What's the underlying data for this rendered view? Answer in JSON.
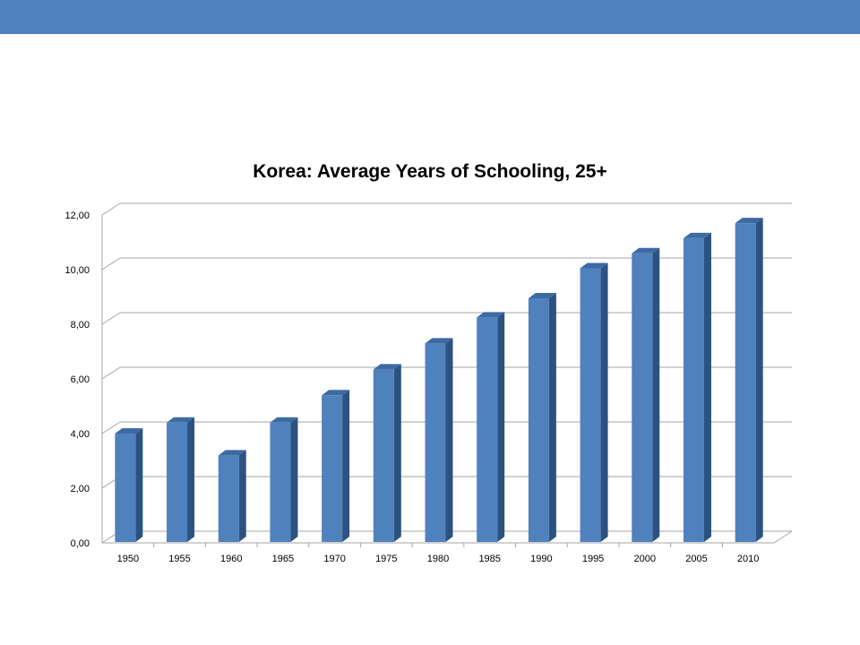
{
  "slide": {
    "top_bar_color": "#4f81bd"
  },
  "chart_data": {
    "type": "bar",
    "title": "Korea: Average Years of Schooling, 25+",
    "xlabel": "",
    "ylabel": "",
    "categories": [
      "1950",
      "1955",
      "1960",
      "1965",
      "1970",
      "1975",
      "1980",
      "1985",
      "1990",
      "1995",
      "2000",
      "2005",
      "2010"
    ],
    "values": [
      4.0,
      4.4,
      3.2,
      4.4,
      5.4,
      6.35,
      7.3,
      8.25,
      8.95,
      10.05,
      10.6,
      11.15,
      11.7
    ],
    "ylim": [
      0,
      12
    ],
    "yticks": [
      "0,00",
      "2,00",
      "4,00",
      "6,00",
      "8,00",
      "10,00",
      "12,00"
    ],
    "grid": true,
    "legend": "none",
    "colors": {
      "bar_front": "#4f81bd",
      "bar_side": "#2c5282",
      "bar_top": "#3d6aa3",
      "grid": "#a6a6a6"
    }
  }
}
